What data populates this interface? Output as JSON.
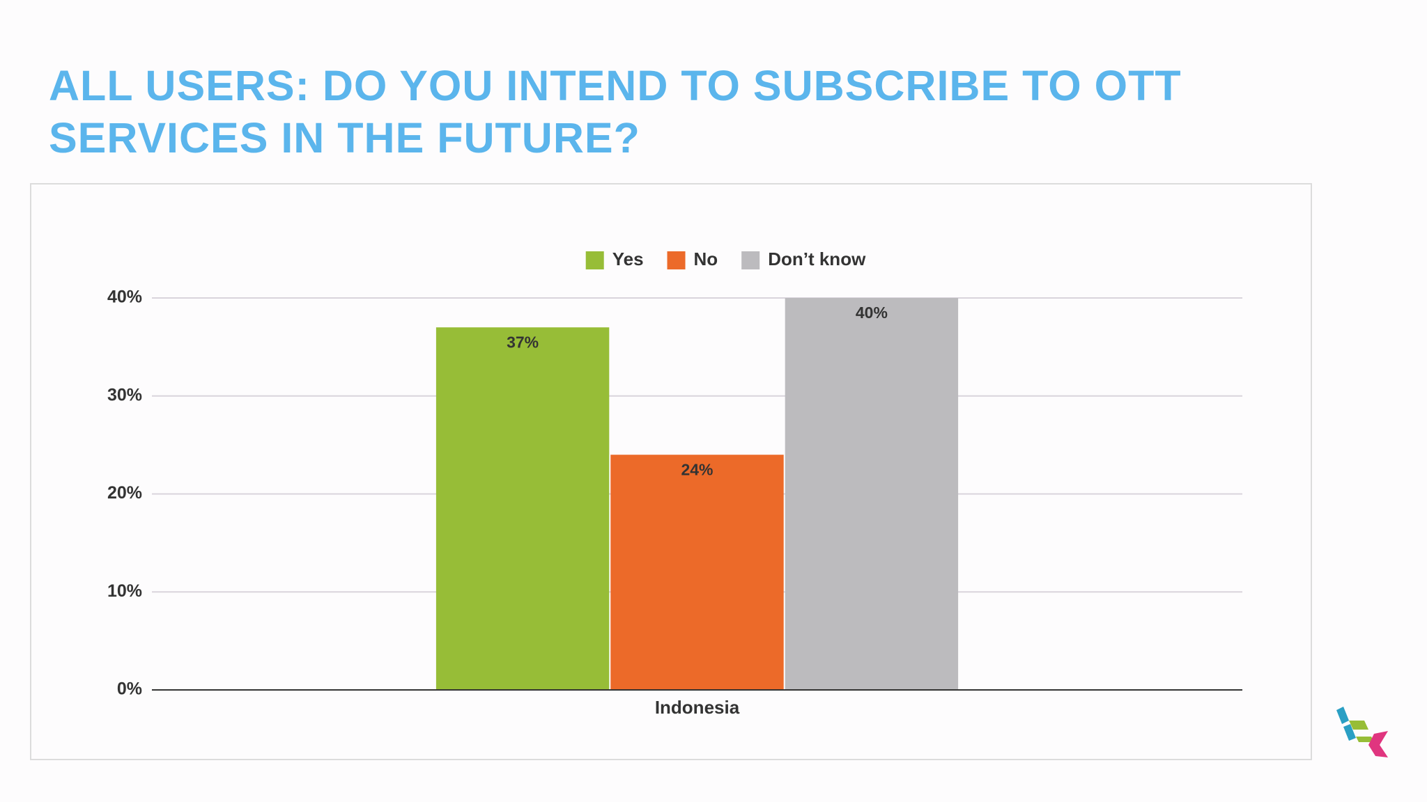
{
  "chart_data": {
    "type": "bar",
    "title": "ALL USERS: DO YOU INTEND TO SUBSCRIBE TO OTT SERVICES IN THE FUTURE?",
    "categories": [
      "Indonesia"
    ],
    "series": [
      {
        "name": "Yes",
        "color": "#97bd37",
        "values": [
          37
        ],
        "value_labels": [
          "37%"
        ]
      },
      {
        "name": "No",
        "color": "#ec6a29",
        "values": [
          24
        ],
        "value_labels": [
          "24%"
        ]
      },
      {
        "name": "Don’t know",
        "color": "#bcbbbe",
        "values": [
          40
        ],
        "value_labels": [
          "40%"
        ]
      }
    ],
    "ylim": [
      0,
      40
    ],
    "yticks": [
      {
        "value": 0,
        "label": "0%"
      },
      {
        "value": 10,
        "label": "10%"
      },
      {
        "value": 20,
        "label": "20%"
      },
      {
        "value": 30,
        "label": "30%"
      },
      {
        "value": 40,
        "label": "40%"
      }
    ],
    "grid": true,
    "legend": "top"
  }
}
